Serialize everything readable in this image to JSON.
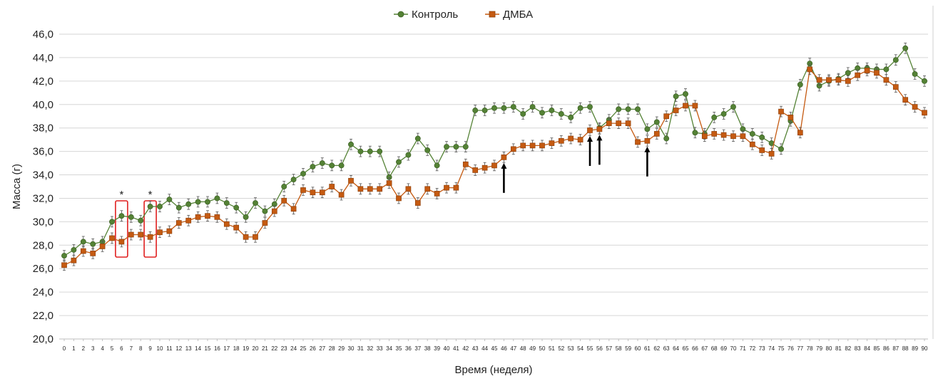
{
  "chart_data": {
    "type": "line",
    "title": "",
    "xlabel": "Время (неделя)",
    "ylabel": "Масса (г)",
    "ylim": [
      20.0,
      46.0
    ],
    "yticks": [
      "20,0",
      "22,0",
      "24,0",
      "26,0",
      "28,0",
      "30,0",
      "32,0",
      "34,0",
      "36,0",
      "38,0",
      "40,0",
      "42,0",
      "44,0",
      "46,0"
    ],
    "grid": true,
    "legend_position": "top-center",
    "x": [
      0,
      1,
      2,
      3,
      4,
      5,
      6,
      7,
      8,
      9,
      10,
      11,
      12,
      13,
      14,
      15,
      16,
      17,
      18,
      19,
      20,
      21,
      22,
      23,
      24,
      25,
      26,
      27,
      28,
      29,
      30,
      31,
      32,
      33,
      34,
      35,
      36,
      37,
      38,
      39,
      40,
      41,
      42,
      43,
      44,
      45,
      46,
      47,
      48,
      49,
      50,
      51,
      52,
      53,
      54,
      55,
      56,
      57,
      58,
      59,
      60,
      61,
      62,
      63,
      64,
      65,
      66,
      67,
      68,
      69,
      70,
      71,
      72,
      73,
      74,
      75,
      76,
      77,
      78,
      79,
      80,
      81,
      82,
      83,
      84,
      85,
      86,
      87,
      88,
      89,
      90
    ],
    "series": [
      {
        "name": "Контроль",
        "color": "#548235",
        "marker": "circle",
        "values": [
          27.1,
          27.6,
          28.3,
          28.1,
          28.3,
          30.0,
          30.5,
          30.4,
          30.1,
          31.3,
          31.3,
          31.9,
          31.2,
          31.5,
          31.7,
          31.7,
          32.0,
          31.6,
          31.2,
          30.4,
          31.6,
          30.9,
          31.5,
          33.0,
          33.6,
          34.1,
          34.7,
          35.0,
          34.8,
          34.8,
          36.6,
          36.0,
          36.0,
          36.0,
          33.8,
          35.1,
          35.7,
          37.1,
          36.1,
          34.8,
          36.4,
          36.4,
          36.4,
          39.5,
          39.5,
          39.7,
          39.7,
          39.8,
          39.2,
          39.8,
          39.3,
          39.5,
          39.2,
          38.9,
          39.7,
          39.8,
          38.0,
          38.7,
          39.6,
          39.6,
          39.6,
          37.9,
          38.5,
          37.1,
          40.7,
          40.9,
          37.6,
          37.5,
          38.9,
          39.2,
          39.8,
          37.9,
          37.5,
          37.2,
          36.7,
          36.2,
          38.6,
          41.7,
          43.5,
          41.6,
          42.0,
          42.2,
          42.7,
          43.1,
          43.1,
          43.0,
          43.0,
          43.8,
          44.8,
          42.6,
          42.0
        ]
      },
      {
        "name": "ДМБА",
        "color": "#c55a11",
        "marker": "square",
        "values": [
          26.3,
          26.7,
          27.5,
          27.3,
          27.9,
          28.6,
          28.3,
          28.9,
          28.9,
          28.7,
          29.1,
          29.2,
          29.9,
          30.1,
          30.4,
          30.5,
          30.4,
          29.8,
          29.5,
          28.7,
          28.7,
          29.9,
          30.9,
          31.8,
          31.1,
          32.7,
          32.5,
          32.5,
          33.0,
          32.3,
          33.5,
          32.8,
          32.8,
          32.8,
          33.3,
          32.0,
          32.8,
          31.6,
          32.8,
          32.4,
          32.9,
          32.9,
          34.9,
          34.4,
          34.6,
          34.8,
          35.5,
          36.2,
          36.5,
          36.5,
          36.5,
          36.7,
          36.9,
          37.1,
          37.0,
          37.8,
          37.9,
          38.4,
          38.4,
          38.4,
          36.8,
          36.9,
          37.5,
          39.0,
          39.5,
          39.9,
          39.9,
          37.3,
          37.5,
          37.4,
          37.3,
          37.3,
          36.6,
          36.1,
          35.8,
          39.4,
          38.9,
          37.6,
          43.0,
          42.1,
          42.1,
          42.1,
          42.0,
          42.5,
          42.9,
          42.7,
          42.1,
          41.5,
          40.4,
          39.8,
          39.3
        ]
      }
    ],
    "error_bar": 0.45,
    "annotations": {
      "significance": [
        {
          "x": 6,
          "label": "*"
        },
        {
          "x": 9,
          "label": "*"
        }
      ],
      "arrows_at_weeks": [
        46,
        55,
        56,
        61
      ]
    }
  }
}
